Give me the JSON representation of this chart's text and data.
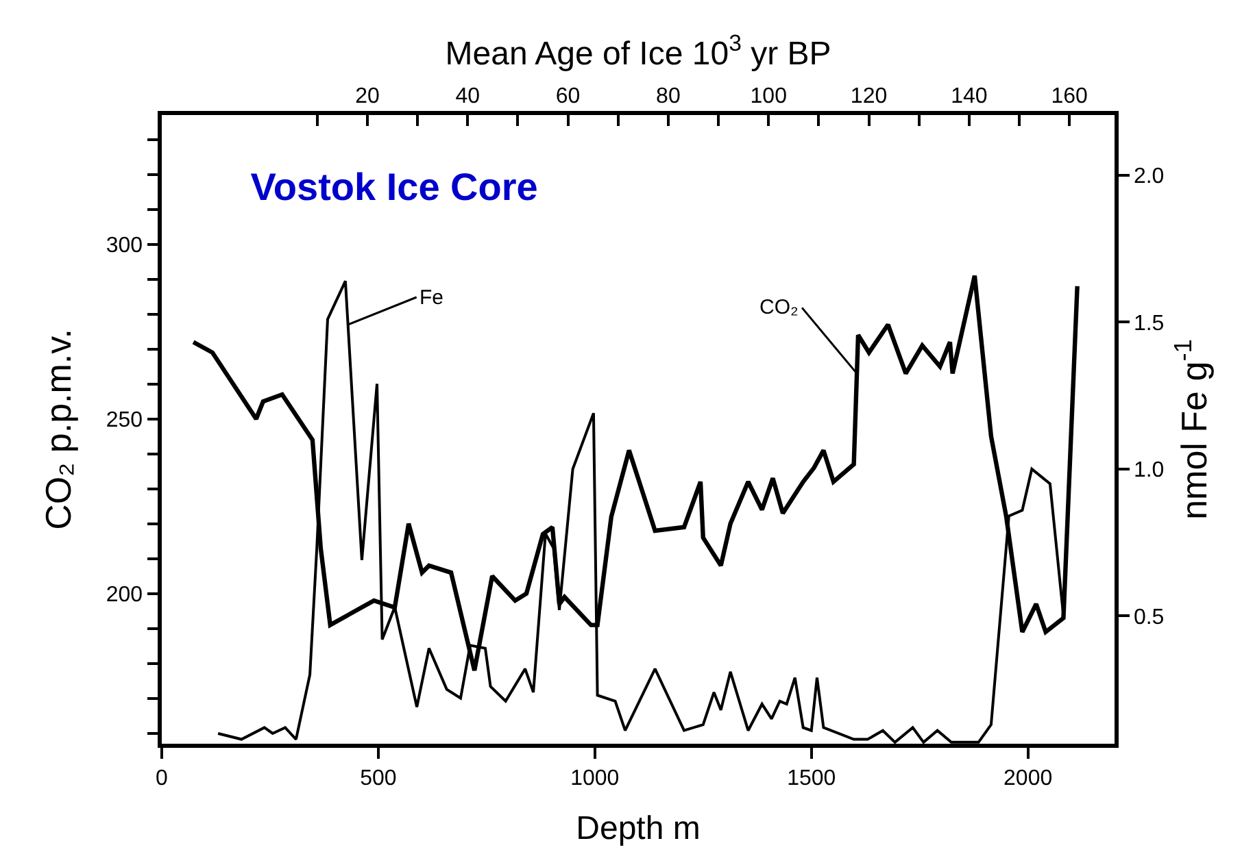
{
  "chart_data": {
    "type": "line",
    "title": "Vostok Ice Core",
    "xlabel": "Depth m",
    "ylabel": "CO₂ p.p.m.v.",
    "y2label": "nmol Fe g$^{-1}$",
    "x2label": "Mean Age of Ice 10$^{3}$ yr BP",
    "xlim": [
      0,
      2200
    ],
    "xticks": [
      0,
      500,
      1000,
      1500,
      2000
    ],
    "x2lim": [
      -21,
      169
    ],
    "x2ticks": [
      {
        "value": 10,
        "label": null
      },
      20,
      {
        "value": 30,
        "label": null
      },
      40,
      {
        "value": 50,
        "label": null
      },
      60,
      {
        "value": 70,
        "label": null
      },
      80,
      {
        "value": 90,
        "label": null
      },
      100,
      {
        "value": 110,
        "label": null
      },
      120,
      {
        "value": 130,
        "label": null
      },
      140,
      {
        "value": 150,
        "label": null
      },
      160
    ],
    "ylim": [
      157,
      337
    ],
    "yticks": [
      {
        "value": 160,
        "label": null
      },
      {
        "value": 170,
        "label": null
      },
      {
        "value": 180,
        "label": null
      },
      {
        "value": 190,
        "label": null
      },
      200,
      {
        "value": 210,
        "label": null
      },
      {
        "value": 220,
        "label": null
      },
      {
        "value": 230,
        "label": null
      },
      {
        "value": 240,
        "label": null
      },
      250,
      {
        "value": 260,
        "label": null
      },
      {
        "value": 270,
        "label": null
      },
      {
        "value": 280,
        "label": null
      },
      {
        "value": 290,
        "label": null
      },
      300,
      {
        "value": 310,
        "label": null
      },
      {
        "value": 320,
        "label": null
      },
      {
        "value": 330,
        "label": null
      }
    ],
    "y2lim": [
      0.065,
      2.205
    ],
    "y2ticks": [
      0.5,
      {
        "value": 1.0,
        "label": "1.0"
      },
      1.5,
      {
        "value": 2.0,
        "label": "2.0"
      }
    ],
    "line_style": "solid",
    "marker": "none",
    "series": [
      {
        "color": "#000000",
        "x": [
          73,
          117,
          218,
          234,
          278,
          348,
          367,
          389,
          490,
          538,
          570,
          601,
          617,
          668,
          722,
          763,
          816,
          842,
          880,
          902,
          918,
          930,
          991,
          1006,
          1038,
          1079,
          1139,
          1206,
          1244,
          1250,
          1291,
          1313,
          1354,
          1386,
          1411,
          1434,
          1481,
          1506,
          1528,
          1551,
          1598,
          1608,
          1633,
          1677,
          1718,
          1756,
          1797,
          1820,
          1826,
          1877,
          1915,
          1950,
          1987,
          2019,
          2041,
          2082,
          2114
        ],
        "values": [
          272,
          269,
          250,
          255,
          257,
          244,
          213,
          191,
          198,
          196,
          220,
          206,
          208,
          206,
          178,
          205,
          198,
          200,
          217,
          219,
          197,
          199,
          191,
          191,
          222,
          241,
          218,
          219,
          232,
          216,
          208,
          220,
          232,
          224,
          233,
          223,
          232,
          236,
          241,
          232,
          237,
          274,
          269,
          277,
          263,
          271,
          265,
          272,
          263,
          291,
          245,
          222,
          189,
          197,
          189,
          193,
          288
        ]
      },
      {
        "color": "#000000",
        "axis": "y2",
        "x": [
          130,
          184,
          237,
          256,
          285,
          310,
          342,
          358,
          383,
          424,
          462,
          497,
          509,
          538,
          589,
          617,
          658,
          690,
          712,
          747,
          759,
          794,
          839,
          858,
          886,
          905,
          918,
          949,
          997,
          1006,
          1047,
          1070,
          1139,
          1206,
          1250,
          1275,
          1291,
          1313,
          1354,
          1386,
          1408,
          1427,
          1443,
          1462,
          1481,
          1500,
          1513,
          1528,
          1598,
          1630,
          1665,
          1693,
          1734,
          1759,
          1791,
          1823,
          1886,
          1915,
          1956,
          1987,
          2009,
          2051,
          2082
        ],
        "values": [
          0.1,
          0.08,
          0.12,
          0.1,
          0.12,
          0.08,
          0.3,
          0.73,
          1.51,
          1.64,
          0.69,
          1.29,
          0.42,
          0.53,
          0.19,
          0.39,
          0.25,
          0.22,
          0.4,
          0.39,
          0.26,
          0.21,
          0.32,
          0.24,
          0.78,
          0.73,
          0.52,
          1.0,
          1.19,
          0.23,
          0.21,
          0.11,
          0.32,
          0.11,
          0.13,
          0.24,
          0.18,
          0.31,
          0.11,
          0.2,
          0.15,
          0.21,
          0.2,
          0.29,
          0.12,
          0.11,
          0.29,
          0.12,
          0.08,
          0.08,
          0.11,
          0.07,
          0.12,
          0.07,
          0.11,
          0.07,
          0.07,
          0.13,
          0.84,
          0.86,
          1.0,
          0.95,
          0.5
        ]
      }
    ],
    "annotations": [
      {
        "text": "Fe",
        "x": 430,
        "y": 277
      },
      {
        "text": "CO₂",
        "x": 1605,
        "y": 263
      }
    ]
  }
}
